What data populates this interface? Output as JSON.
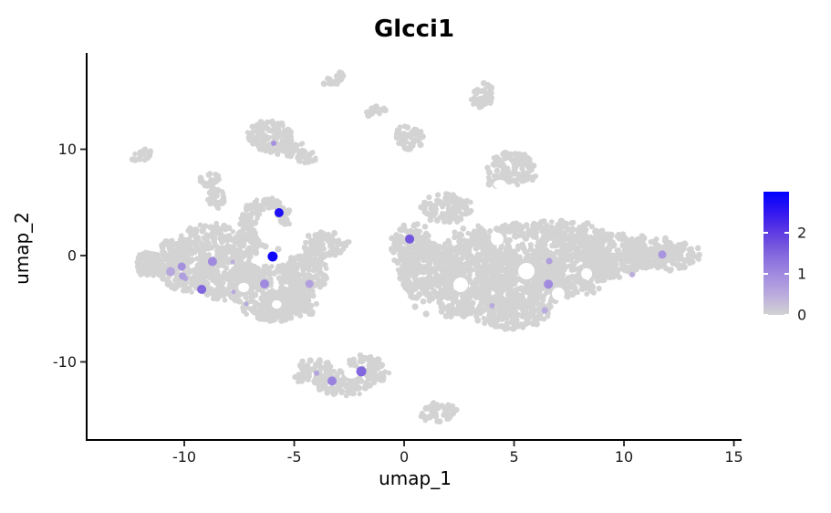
{
  "chart_data": {
    "type": "scatter",
    "title": "Glcci1",
    "subtitle": "",
    "xlabel": "umap_1",
    "ylabel": "umap_2",
    "xlim": [
      -14.4,
      15.35
    ],
    "ylim": [
      -17.26,
      19.06
    ],
    "x_ticks": [
      -10,
      -5,
      0,
      5,
      10,
      15
    ],
    "y_ticks": [
      -10,
      0,
      10
    ],
    "grid": false,
    "legend_position": "right",
    "colorbar": {
      "ticks": [
        0,
        1,
        2
      ],
      "min": 0,
      "max": 3,
      "stops": [
        [
          0,
          "#d3d3d3"
        ],
        [
          0.5,
          "#b9aadd"
        ],
        [
          1,
          "#a08ae0"
        ],
        [
          1.5,
          "#8166dd"
        ],
        [
          2,
          "#5e3be2"
        ],
        [
          2.5,
          "#3317f0"
        ],
        [
          3,
          "#0000ff"
        ]
      ]
    },
    "point_fields": [
      "x",
      "y",
      "expression",
      "radius_px"
    ],
    "expressing_cells": [
      [
        -5.69,
        4.03,
        2.7,
        5
      ],
      [
        -5.98,
        -0.09,
        2.85,
        5.5
      ],
      [
        0.25,
        1.55,
        1.7,
        5
      ],
      [
        -8.72,
        -0.56,
        1.0,
        5
      ],
      [
        -9.21,
        -3.18,
        1.5,
        5
      ],
      [
        -10.12,
        -1.03,
        0.9,
        4.5
      ],
      [
        -10.62,
        -1.5,
        0.55,
        5
      ],
      [
        -10.08,
        -1.93,
        0.7,
        4
      ],
      [
        -6.35,
        -2.66,
        1.0,
        5
      ],
      [
        -4.31,
        -2.66,
        0.65,
        4.5
      ],
      [
        -5.93,
        10.56,
        0.9,
        3
      ],
      [
        6.56,
        -2.7,
        1.0,
        5
      ],
      [
        6.6,
        -0.52,
        0.7,
        3.5
      ],
      [
        11.74,
        0.09,
        0.85,
        4.5
      ],
      [
        -1.95,
        -10.9,
        1.5,
        5.5
      ],
      [
        -3.28,
        -11.8,
        1.1,
        5
      ],
      [
        -3.98,
        -11.07,
        0.6,
        3
      ],
      [
        4.0,
        -4.72,
        0.5,
        3
      ],
      [
        6.4,
        -5.15,
        0.5,
        3.5
      ],
      [
        -7.76,
        -3.43,
        0.5,
        2.5
      ],
      [
        -7.18,
        -4.55,
        0.5,
        2.5
      ],
      [
        -7.8,
        -0.6,
        0.45,
        2.5
      ],
      [
        10.37,
        -1.8,
        0.45,
        3
      ],
      [
        -9.95,
        -2.15,
        0.6,
        3
      ]
    ],
    "background_clusters": [
      {
        "name": "left-wing",
        "patches": [
          [
            -11.33,
            -0.86,
            0.9,
            1.0,
            -20
          ],
          [
            -11.74,
            -0.43,
            0.62,
            0.86,
            0
          ],
          [
            -9.88,
            -1.29,
            1.24,
            2.15,
            0
          ],
          [
            -10.37,
            0.6,
            0.75,
            1.03,
            0
          ],
          [
            -9.05,
            1.72,
            1.24,
            1.2,
            -10
          ],
          [
            -8.01,
            -1.72,
            1.45,
            2.58,
            0
          ],
          [
            -7.26,
            1.03,
            0.83,
            1.03,
            0
          ],
          [
            -6.02,
            -3.43,
            1.66,
            2.58,
            0
          ],
          [
            -5.93,
            -5.32,
            0.83,
            0.94,
            0
          ],
          [
            -5.02,
            -4.46,
            1.12,
            1.37,
            0
          ],
          [
            -4.48,
            -1.72,
            1.04,
            1.89,
            0
          ],
          [
            -3.57,
            1.03,
            1.04,
            1.2,
            0
          ],
          [
            -4.27,
            -0.17,
            0.62,
            0.69,
            0
          ]
        ]
      },
      {
        "name": "hook",
        "patches": [
          [
            -7.1,
            1.89,
            0.41,
            0.77,
            0
          ],
          [
            -7.1,
            3.18,
            0.37,
            0.77,
            0
          ],
          [
            -6.89,
            4.12,
            0.37,
            0.77,
            0
          ],
          [
            -6.43,
            4.81,
            0.46,
            0.6,
            0
          ],
          [
            -5.93,
            4.85,
            0.37,
            0.6,
            0
          ],
          [
            -5.52,
            4.21,
            0.33,
            0.69,
            0
          ],
          [
            -5.39,
            3.18,
            0.29,
            0.6,
            0
          ]
        ]
      },
      {
        "name": "small-pair",
        "patches": [
          [
            -8.84,
            7.12,
            0.46,
            0.77,
            0
          ],
          [
            -8.55,
            5.32,
            0.41,
            1.03,
            0
          ]
        ]
      },
      {
        "name": "top-left-blob",
        "patches": [
          [
            -6.14,
            11.16,
            1.04,
            1.72,
            0
          ],
          [
            -5.1,
            10.04,
            0.62,
            0.86,
            0
          ],
          [
            -4.44,
            9.27,
            0.46,
            0.6,
            0
          ]
        ]
      },
      {
        "name": "far-left-dot",
        "patches": [
          [
            -11.91,
            9.36,
            0.54,
            0.52,
            -25
          ]
        ]
      },
      {
        "name": "top-mid-streak",
        "patches": [
          [
            -3.2,
            16.57,
            0.54,
            0.52,
            -35
          ]
        ]
      },
      {
        "name": "top-mid-dot",
        "patches": [
          [
            -1.29,
            13.56,
            0.46,
            0.52,
            -20
          ]
        ]
      },
      {
        "name": "mid-blob",
        "patches": [
          [
            0.29,
            10.99,
            0.66,
            0.94,
            0
          ],
          [
            -0.08,
            11.67,
            0.33,
            0.6,
            0
          ]
        ]
      },
      {
        "name": "top-bean",
        "patches": [
          [
            3.65,
            15.19,
            0.46,
            1.03,
            0
          ],
          [
            3.36,
            14.42,
            0.33,
            0.6,
            0
          ]
        ]
      },
      {
        "name": "upper-right-blob",
        "patches": [
          [
            4.94,
            8.15,
            1.12,
            1.63,
            0
          ],
          [
            4.11,
            7.04,
            0.41,
            0.52,
            0
          ]
        ]
      },
      {
        "name": "right-main",
        "patches": [
          [
            0.37,
            0.86,
            1.0,
            2.1,
            0
          ],
          [
            1.2,
            -1.72,
            1.45,
            2.58,
            0
          ],
          [
            1.95,
            4.46,
            1.16,
            1.37,
            0
          ],
          [
            3.28,
            -0.86,
            1.87,
            3.43,
            0
          ],
          [
            5.35,
            -2.4,
            2.07,
            3.43,
            0
          ],
          [
            7.55,
            -0.86,
            2.07,
            3.0,
            0
          ],
          [
            9.5,
            0.0,
            1.66,
            2.15,
            0
          ],
          [
            11.16,
            0.34,
            1.24,
            1.55,
            0
          ],
          [
            12.41,
            -0.09,
            1.08,
            1.2,
            -12
          ],
          [
            4.85,
            -5.32,
            1.66,
            1.55,
            0
          ],
          [
            6.51,
            2.4,
            2.49,
            0.86,
            0
          ],
          [
            2.37,
            -4.72,
            0.83,
            1.29,
            0
          ]
        ]
      },
      {
        "name": "bottom-mid",
        "patches": [
          [
            -4.07,
            -10.82,
            0.91,
            1.03,
            0
          ],
          [
            -2.74,
            -12.02,
            1.16,
            1.2,
            0
          ],
          [
            -1.78,
            -10.21,
            0.75,
            0.86,
            0
          ],
          [
            -1.2,
            -11.07,
            0.58,
            0.86,
            0
          ],
          [
            -4.69,
            -11.5,
            0.37,
            0.43,
            0
          ]
        ]
      },
      {
        "name": "bottom-right-blob",
        "patches": [
          [
            1.58,
            -14.76,
            0.79,
            0.94,
            -10
          ]
        ]
      }
    ],
    "holes": [
      [
        2.57,
        -2.75,
        0.33,
        0.69
      ],
      [
        4.23,
        1.55,
        0.29,
        0.6
      ],
      [
        5.56,
        -1.46,
        0.37,
        0.77
      ],
      [
        7.01,
        -3.6,
        0.29,
        0.6
      ],
      [
        8.3,
        -1.72,
        0.25,
        0.52
      ],
      [
        -2.4,
        -11.04,
        0.33,
        0.52
      ],
      [
        4.36,
        6.7,
        0.29,
        0.43
      ],
      [
        -7.3,
        -3.0,
        0.25,
        0.45
      ],
      [
        -5.8,
        -4.6,
        0.22,
        0.4
      ]
    ],
    "lone_points": [
      [
        -9.46,
        2.4
      ],
      [
        -8.8,
        2.66
      ],
      [
        -8.13,
        2.49
      ],
      [
        -7.51,
        2.06
      ],
      [
        -6.64,
        1.37
      ],
      [
        -6.31,
        0.86
      ],
      [
        -5.73,
        0.6
      ],
      [
        -3.78,
        -0.26
      ],
      [
        -4.07,
        -0.94
      ],
      [
        -0.41,
        1.55
      ],
      [
        -0.21,
        0.6
      ],
      [
        3.2,
        2.23
      ],
      [
        3.73,
        1.72
      ],
      [
        0.5,
        -4.81
      ],
      [
        1.0,
        -5.49
      ]
    ]
  }
}
